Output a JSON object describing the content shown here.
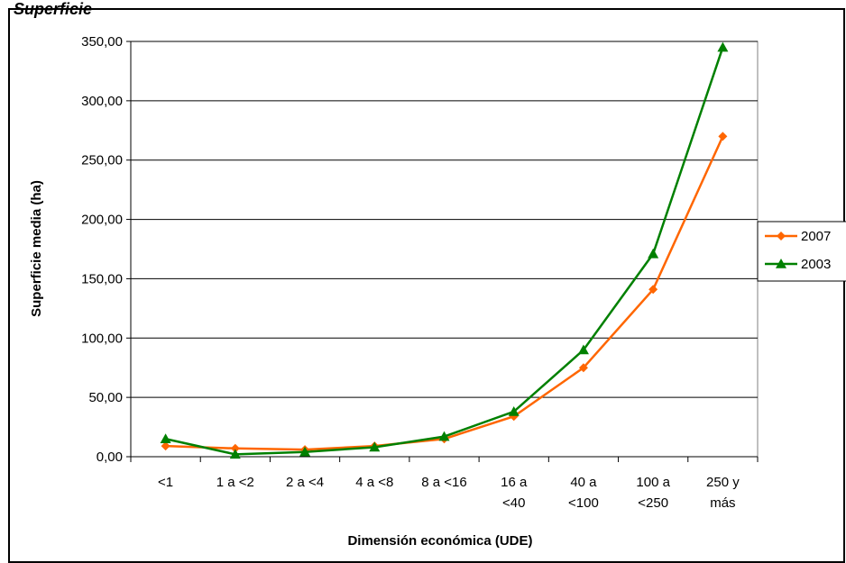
{
  "figure": {
    "top_title": "Superficie"
  },
  "chart_data": {
    "type": "line",
    "title": "",
    "xlabel": "Dimensión económica (UDE)",
    "ylabel": "Superficie media (ha)",
    "ylim": [
      0,
      350
    ],
    "yticks": [
      "0,00",
      "50,00",
      "100,00",
      "150,00",
      "200,00",
      "250,00",
      "300,00",
      "350,00"
    ],
    "grid": true,
    "legend_position": "right",
    "categories": [
      [
        "<1"
      ],
      [
        "1 a <2"
      ],
      [
        "2 a <4"
      ],
      [
        "4 a <8"
      ],
      [
        "8 a <16"
      ],
      [
        "16 a",
        "<40"
      ],
      [
        "40 a",
        "<100"
      ],
      [
        "100 a",
        "<250"
      ],
      [
        "250 y",
        "más"
      ]
    ],
    "series": [
      {
        "name": "2007",
        "color": "#ff6600",
        "marker": "diamond",
        "values": [
          9,
          7,
          6,
          9,
          15,
          34,
          75,
          141,
          270
        ]
      },
      {
        "name": "2003",
        "color": "#008000",
        "marker": "triangle",
        "values": [
          15,
          2,
          4,
          8,
          17,
          38,
          90,
          171,
          345
        ]
      }
    ]
  }
}
